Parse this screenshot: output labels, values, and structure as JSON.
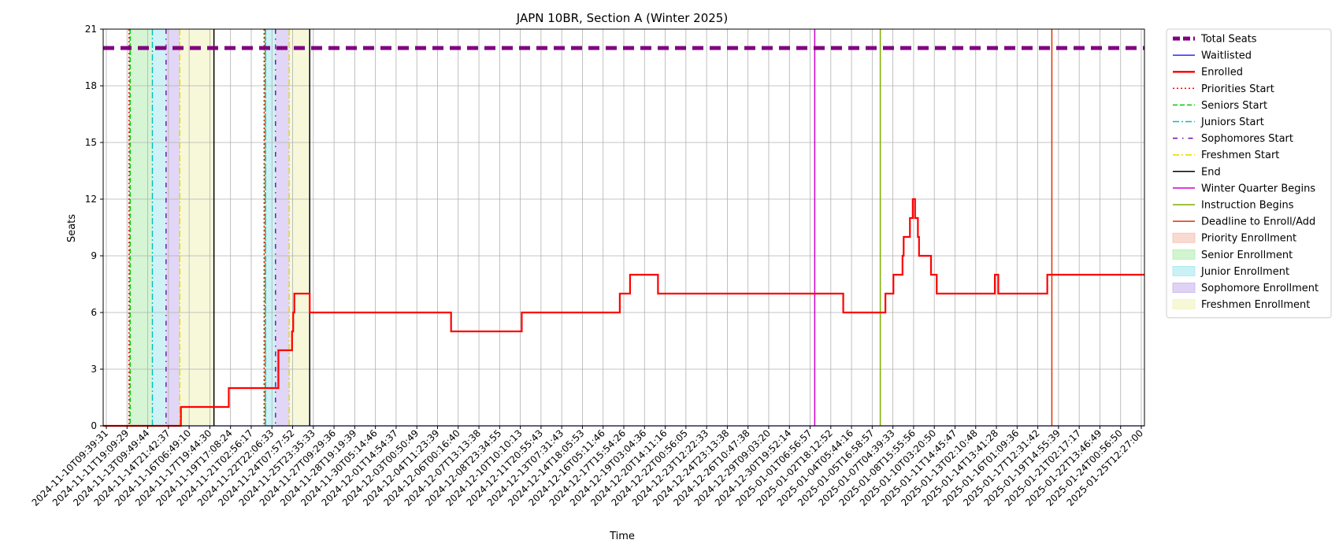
{
  "chart_data": {
    "type": "line",
    "title": "JAPN 10BR, Section A (Winter 2025)",
    "xlabel": "Time",
    "ylabel": "Seats",
    "ylim": [
      0,
      21
    ],
    "yticks": [
      0,
      3,
      6,
      9,
      12,
      15,
      18,
      21
    ],
    "xlim": [
      "2024-11-10T09:39:31",
      "2025-01-25T12:27:00"
    ],
    "grid": true,
    "legend_position": "outside-right",
    "xtick_labels": [
      "2024-11-10T09:39:31",
      "2024-11-11T19:09:29",
      "2024-11-13T09:49:44",
      "2024-11-14T21:42:37",
      "2024-11-16T06:49:10",
      "2024-11-17T19:44:30",
      "2024-11-19T17:08:24",
      "2024-11-21T02:56:17",
      "2024-11-22T22:06:33",
      "2024-11-24T07:57:52",
      "2024-11-25T23:35:33",
      "2024-11-27T09:29:36",
      "2024-11-28T19:19:39",
      "2024-11-30T05:14:46",
      "2024-12-01T14:54:37",
      "2024-12-03T00:50:49",
      "2024-12-04T11:23:39",
      "2024-12-06T00:16:40",
      "2024-12-07T13:13:38",
      "2024-12-08T23:34:55",
      "2024-12-10T10:10:13",
      "2024-12-11T20:55:43",
      "2024-12-13T07:31:43",
      "2024-12-14T18:05:53",
      "2024-12-16T05:11:46",
      "2024-12-17T15:54:26",
      "2024-12-19T03:04:36",
      "2024-12-20T14:11:16",
      "2024-12-22T00:56:05",
      "2024-12-23T12:22:33",
      "2024-12-24T23:13:38",
      "2024-12-26T10:47:38",
      "2024-12-29T09:03:20",
      "2024-12-30T19:52:14",
      "2025-01-01T06:56:57",
      "2025-01-02T18:12:52",
      "2025-01-04T05:44:16",
      "2025-01-05T16:58:57",
      "2025-01-07T04:39:33",
      "2025-01-08T15:55:56",
      "2025-01-10T03:20:50",
      "2025-01-11T14:45:47",
      "2025-01-13T02:10:48",
      "2025-01-14T13:41:28",
      "2025-01-16T01:09:36",
      "2025-01-17T12:31:42",
      "2025-01-19T14:55:39",
      "2025-01-21T02:17:17",
      "2025-01-22T13:46:49",
      "2025-01-24T00:56:50",
      "2025-01-25T12:27:00"
    ],
    "series": [
      {
        "name": "Total Seats",
        "color": "#800080",
        "style": "dashed-thick",
        "y_constant": 20
      },
      {
        "name": "Waitlisted",
        "color": "#0000ff",
        "style": "solid-thin",
        "y_constant": 0
      },
      {
        "name": "Enrolled",
        "color": "#ff0000",
        "style": "step",
        "points": [
          [
            "2024-11-10T09:39:31",
            0
          ],
          [
            "2024-11-16T02:00:00",
            1
          ],
          [
            "2024-11-19T14:00:00",
            2
          ],
          [
            "2024-11-23T05:00:00",
            4
          ],
          [
            "2024-11-24T05:00:00",
            5
          ],
          [
            "2024-11-24T07:00:00",
            6
          ],
          [
            "2024-11-24T09:00:00",
            7
          ],
          [
            "2024-11-25T12:00:00",
            6
          ],
          [
            "2024-12-05T20:00:00",
            5
          ],
          [
            "2024-12-11T00:00:00",
            6
          ],
          [
            "2024-12-18T04:00:00",
            7
          ],
          [
            "2024-12-18T22:00:00",
            8
          ],
          [
            "2024-12-20T23:00:00",
            7
          ],
          [
            "2025-01-03T12:00:00",
            6
          ],
          [
            "2025-01-06T14:00:00",
            7
          ],
          [
            "2025-01-07T04:00:00",
            8
          ],
          [
            "2025-01-07T20:00:00",
            9
          ],
          [
            "2025-01-07T22:00:00",
            10
          ],
          [
            "2025-01-08T09:00:00",
            11
          ],
          [
            "2025-01-08T14:00:00",
            12
          ],
          [
            "2025-01-08T18:00:00",
            11
          ],
          [
            "2025-01-08T23:00:00",
            10
          ],
          [
            "2025-01-09T01:00:00",
            9
          ],
          [
            "2025-01-09T22:00:00",
            8
          ],
          [
            "2025-01-10T08:00:00",
            7
          ],
          [
            "2025-01-14T14:00:00",
            8
          ],
          [
            "2025-01-14T20:00:00",
            7
          ],
          [
            "2025-01-18T10:00:00",
            8
          ],
          [
            "2025-01-25T12:27:00",
            8
          ]
        ]
      }
    ],
    "event_lines": [
      {
        "name": "Priorities Start",
        "color": "#ff0000",
        "style": "dotted",
        "x": [
          "2024-11-12T07:00:00",
          "2024-11-22T04:00:00"
        ]
      },
      {
        "name": "Seniors Start",
        "color": "#00cc00",
        "style": "dashed",
        "x": [
          "2024-11-12T09:00:00",
          "2024-11-22T06:00:00"
        ]
      },
      {
        "name": "Juniors Start",
        "color": "#00bfbf",
        "style": "dashdot",
        "x": [
          "2024-11-14T00:00:00",
          "2024-11-22T06:30:00"
        ]
      },
      {
        "name": "Sophomores Start",
        "color": "#6a0dad",
        "style": "dashed-dot-sparse",
        "x": [
          "2024-11-15T00:00:00",
          "2024-11-23T00:00:00"
        ]
      },
      {
        "name": "Freshmen Start",
        "color": "#e6d800",
        "style": "dashdot",
        "x": [
          "2024-11-16T00:00:00",
          "2024-11-24T00:00:00"
        ]
      },
      {
        "name": "End",
        "color": "#000000",
        "style": "solid",
        "x": [
          "2024-11-18T12:00:00",
          "2024-11-25T12:00:00"
        ]
      },
      {
        "name": "Winter Quarter Begins",
        "color": "#cc00cc",
        "style": "solid",
        "x": [
          "2025-01-01T10:00:00"
        ]
      },
      {
        "name": "Instruction Begins",
        "color": "#7fad00",
        "style": "solid",
        "x": [
          "2025-01-06T05:00:00"
        ]
      },
      {
        "name": "Deadline to Enroll/Add",
        "color": "#dd3300",
        "style": "solid",
        "x": [
          "2025-01-18T18:00:00"
        ]
      }
    ],
    "shaded_regions": [
      {
        "name": "Priority Enrollment",
        "color": "#f4c2b0",
        "ranges": [
          [
            "2024-11-12T07:00:00",
            "2024-11-12T09:00:00"
          ],
          [
            "2024-11-22T04:00:00",
            "2024-11-22T06:00:00"
          ]
        ]
      },
      {
        "name": "Senior Enrollment",
        "color": "#b4ecb0",
        "ranges": [
          [
            "2024-11-12T09:00:00",
            "2024-11-14T00:00:00"
          ],
          [
            "2024-11-22T06:00:00",
            "2024-11-22T06:30:00"
          ]
        ]
      },
      {
        "name": "Junior Enrollment",
        "color": "#a6e8ee",
        "ranges": [
          [
            "2024-11-14T00:00:00",
            "2024-11-15T00:00:00"
          ],
          [
            "2024-11-22T06:30:00",
            "2024-11-23T00:00:00"
          ]
        ]
      },
      {
        "name": "Sophomore Enrollment",
        "color": "#c9b4ec",
        "ranges": [
          [
            "2024-11-15T00:00:00",
            "2024-11-16T00:00:00"
          ],
          [
            "2024-11-23T00:00:00",
            "2024-11-24T00:00:00"
          ]
        ]
      },
      {
        "name": "Freshmen Enrollment",
        "color": "#f1f3bc",
        "ranges": [
          [
            "2024-11-16T00:00:00",
            "2024-11-18T12:00:00"
          ],
          [
            "2024-11-24T00:00:00",
            "2024-11-25T12:00:00"
          ]
        ]
      }
    ],
    "legend": [
      {
        "label": "Total Seats",
        "kind": "line",
        "color": "#800080",
        "style": "dashed-thick"
      },
      {
        "label": "Waitlisted",
        "kind": "line",
        "color": "#0000ff",
        "style": "solid-thin"
      },
      {
        "label": "Enrolled",
        "kind": "line",
        "color": "#ff0000",
        "style": "solid-thick"
      },
      {
        "label": "Priorities Start",
        "kind": "line",
        "color": "#ff0000",
        "style": "dotted"
      },
      {
        "label": "Seniors Start",
        "kind": "line",
        "color": "#00cc00",
        "style": "dashed"
      },
      {
        "label": "Juniors Start",
        "kind": "line",
        "color": "#00bfbf",
        "style": "dashdot"
      },
      {
        "label": "Sophomores Start",
        "kind": "line",
        "color": "#6a0dad",
        "style": "dashed-dot-sparse"
      },
      {
        "label": "Freshmen Start",
        "kind": "line",
        "color": "#e6d800",
        "style": "dashdot"
      },
      {
        "label": "End",
        "kind": "line",
        "color": "#000000",
        "style": "solid"
      },
      {
        "label": "Winter Quarter Begins",
        "kind": "line",
        "color": "#cc00cc",
        "style": "solid"
      },
      {
        "label": "Instruction Begins",
        "kind": "line",
        "color": "#7fad00",
        "style": "solid"
      },
      {
        "label": "Deadline to Enroll/Add",
        "kind": "line",
        "color": "#dd3300",
        "style": "solid"
      },
      {
        "label": "Priority Enrollment",
        "kind": "patch",
        "color": "#f4c2b0"
      },
      {
        "label": "Senior Enrollment",
        "kind": "patch",
        "color": "#b4ecb0"
      },
      {
        "label": "Junior Enrollment",
        "kind": "patch",
        "color": "#a6e8ee"
      },
      {
        "label": "Sophomore Enrollment",
        "kind": "patch",
        "color": "#c9b4ec"
      },
      {
        "label": "Freshmen Enrollment",
        "kind": "patch",
        "color": "#f1f3bc"
      }
    ]
  }
}
